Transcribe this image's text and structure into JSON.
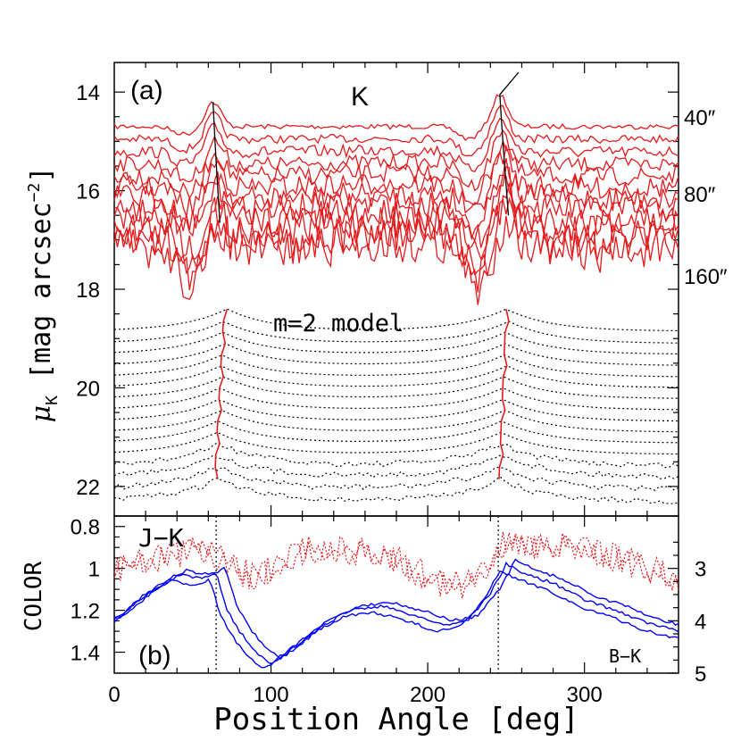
{
  "chart_data": [
    {
      "panel": "(a)",
      "type": "line",
      "band_label": "K",
      "model_label": "m=2 model",
      "ylabel": "μK [mag arcsec⁻²]",
      "ylabel_main": "μ",
      "ylabel_sub": "K",
      "ylabel_rest": " [mag arcsec",
      "ylabel_exp": "−2",
      "ylabel_close": "]",
      "xlim": [
        0,
        360
      ],
      "ylim": [
        22.6,
        13.4
      ],
      "y_inverted": true,
      "yticks": [
        "14",
        "16",
        "18",
        "20",
        "22"
      ],
      "right_labels": [
        "40″",
        "80″",
        "160″"
      ],
      "observed_profiles": {
        "color": "#e41a1c",
        "count": 12,
        "base_levels": [
          14.7,
          14.95,
          15.2,
          15.45,
          15.68,
          15.9,
          16.12,
          16.33,
          16.54,
          16.75,
          16.95,
          17.15
        ],
        "peak_angles": [
          63,
          246
        ],
        "peak_ridge_color": "#000000"
      },
      "model_profiles": {
        "color": "#000000",
        "style": "dotted",
        "count": 16,
        "base_levels": [
          18.85,
          19.1,
          19.32,
          19.55,
          19.78,
          20.0,
          20.22,
          20.45,
          20.68,
          20.9,
          21.12,
          21.35,
          21.58,
          21.8,
          22.05,
          22.3
        ],
        "peak_angles": [
          70,
          250
        ],
        "peak_ridge_color": "#e41a1c"
      }
    },
    {
      "panel": "(b)",
      "type": "line",
      "label_left": "J−K",
      "label_right": "B−K",
      "ylabel": "COLOR",
      "xlabel": "Position Angle [deg]",
      "xlim": [
        0,
        360
      ],
      "xticks": [
        "0",
        "100",
        "200",
        "300"
      ],
      "ylim": [
        1.5,
        0.75
      ],
      "yticks": [
        "0.8",
        "1",
        "1.2",
        "1.4"
      ],
      "right_ylim": [
        5,
        2
      ],
      "right_yticks": [
        "3",
        "4",
        "5"
      ],
      "vertical_markers": [
        65,
        245
      ],
      "series": [
        {
          "axis": "left",
          "color": "#0000ff",
          "style": "solid",
          "x": [
            0,
            20,
            40,
            55,
            65,
            72,
            80,
            90,
            100,
            110,
            130,
            150,
            170,
            190,
            210,
            225,
            240,
            250,
            260,
            280,
            300,
            320,
            340,
            360
          ],
          "y": [
            1.25,
            1.12,
            1.03,
            1.05,
            1.02,
            1.2,
            1.3,
            1.4,
            1.45,
            1.4,
            1.28,
            1.2,
            1.18,
            1.22,
            1.27,
            1.25,
            1.12,
            0.98,
            1.02,
            1.07,
            1.15,
            1.2,
            1.26,
            1.3
          ]
        },
        {
          "axis": "right",
          "color": "#e41a1c",
          "style": "dotted",
          "x": [
            0,
            20,
            40,
            60,
            70,
            90,
            110,
            130,
            150,
            170,
            190,
            210,
            230,
            250,
            270,
            290,
            310,
            330,
            350,
            360
          ],
          "y": [
            3.0,
            2.85,
            2.75,
            2.6,
            2.9,
            3.2,
            2.8,
            2.6,
            2.7,
            2.65,
            3.0,
            3.3,
            3.3,
            2.5,
            2.55,
            2.6,
            2.7,
            2.9,
            3.1,
            3.2
          ]
        }
      ]
    }
  ]
}
